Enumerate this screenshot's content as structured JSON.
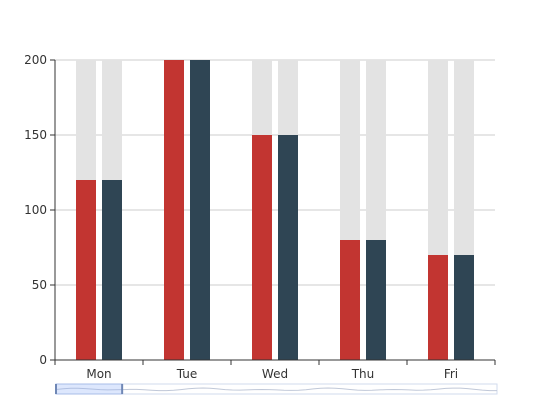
{
  "chart_data": {
    "type": "bar",
    "categories": [
      "Mon",
      "Tue",
      "Wed",
      "Thu",
      "Fri"
    ],
    "series": [
      {
        "values": [
          120,
          200,
          150,
          80,
          70
        ],
        "color": "#c23531",
        "background": 200,
        "background_color": "#e3e3e3"
      },
      {
        "values": [
          120,
          200,
          150,
          80,
          70
        ],
        "color": "#2f4554",
        "background": 200,
        "background_color": "#e3e3e3"
      }
    ],
    "yticks": [
      0,
      50,
      100,
      150,
      200
    ],
    "ylim": [
      0,
      200
    ],
    "grid": true,
    "data_zoom": {
      "start": 0,
      "end": 15
    }
  }
}
